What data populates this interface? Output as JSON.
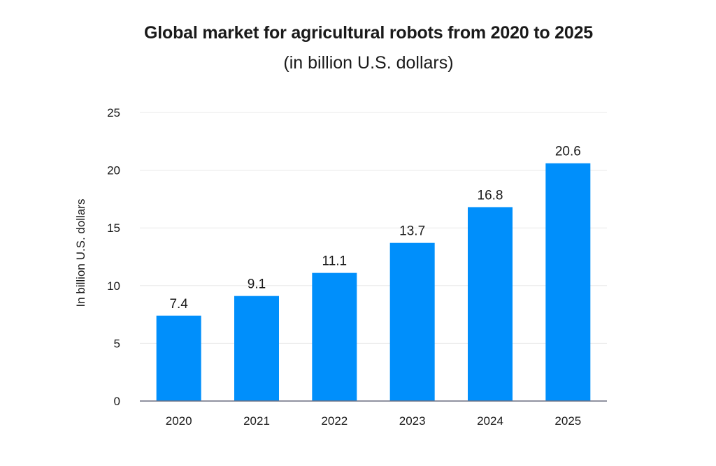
{
  "chart_data": {
    "type": "bar",
    "title": "Global market for agricultural robots from 2020 to 2025",
    "subtitle": "(in billion U.S. dollars)",
    "xlabel": "",
    "ylabel": "In billion U.S. dollars",
    "categories": [
      "2020",
      "2021",
      "2022",
      "2023",
      "2024",
      "2025"
    ],
    "values": [
      7.4,
      9.1,
      11.1,
      13.7,
      16.8,
      20.6
    ],
    "data_labels": [
      "7.4",
      "9.1",
      "11.1",
      "13.7",
      "16.8",
      "20.6"
    ],
    "ylim": [
      0,
      25
    ],
    "yticks": [
      0,
      5,
      10,
      15,
      20,
      25
    ],
    "ytick_labels": [
      "0",
      "5",
      "10",
      "15",
      "20",
      "25"
    ],
    "grid": true,
    "legend": "none",
    "colors": {
      "bar": "#008FFB",
      "grid": "#e8e8e8",
      "axis": "#6b6f80"
    }
  }
}
